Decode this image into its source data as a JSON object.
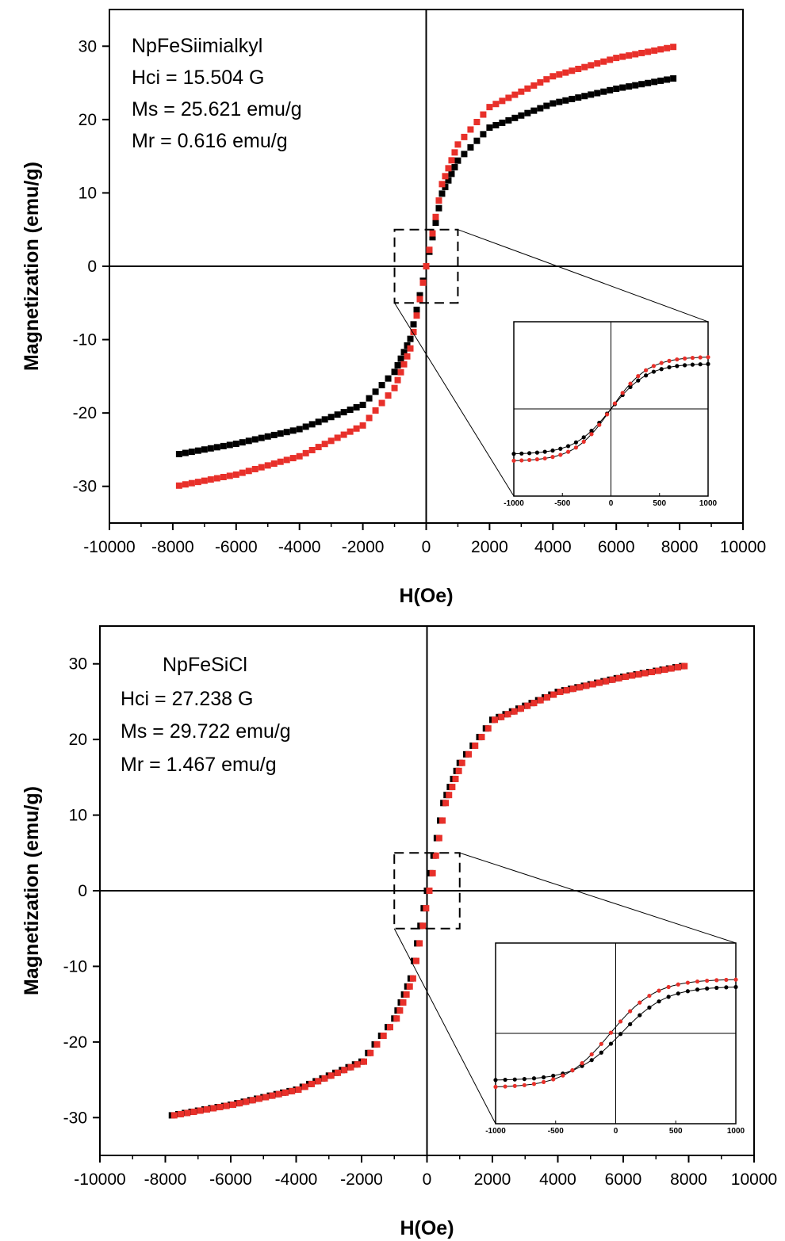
{
  "chart_data": [
    {
      "type": "scatter",
      "title": "",
      "xlabel": "H(Oe)",
      "ylabel": "Magnetization (emu/g)",
      "xlim": [
        -10000,
        10000
      ],
      "ylim": [
        -35,
        35
      ],
      "xticks": [
        "-10000",
        "-8000",
        "-6000",
        "-4000",
        "-2000",
        "0",
        "2000",
        "4000",
        "6000",
        "8000",
        "10000"
      ],
      "yticks": [
        "30",
        "20",
        "10",
        "0",
        "-10",
        "-20",
        "-30"
      ],
      "annotations": [
        "NpFeSiimialkyl",
        "Hci = 15.504 G",
        "Ms = 25.621 emu/g",
        "Mr  = 0.616 emu/g"
      ],
      "series": [
        {
          "color": "#000000",
          "x": [
            -7800,
            -6000,
            -4000,
            -2000,
            -1000,
            -500,
            0,
            500,
            1000,
            2000,
            4000,
            6000,
            7800
          ],
          "y": [
            -25.6,
            -24.2,
            -22.2,
            -18.9,
            -14.4,
            -9.9,
            0,
            9.9,
            14.4,
            18.9,
            22.2,
            24.2,
            25.6
          ]
        },
        {
          "color": "#e8302a",
          "x": [
            -7800,
            -6000,
            -4000,
            -2000,
            -1000,
            -500,
            0,
            500,
            1000,
            2000,
            4000,
            6000,
            7800
          ],
          "y": [
            -29.9,
            -28.4,
            -25.9,
            -21.7,
            -16.6,
            -11.2,
            0,
            11.2,
            16.6,
            21.7,
            25.9,
            28.4,
            29.9
          ]
        }
      ],
      "inset": {
        "xlim": [
          -1000,
          1000
        ],
        "xticks": [
          "-1000",
          "-500",
          "0",
          "500",
          "1000"
        ],
        "zoom_box_x": [
          -1000,
          1000
        ],
        "zoom_box_y": [
          -5,
          5
        ]
      }
    },
    {
      "type": "scatter",
      "title": "",
      "xlabel": "H(Oe)",
      "ylabel": "Magnetization (emu/g)",
      "xlim": [
        -10000,
        10000
      ],
      "ylim": [
        -35,
        35
      ],
      "xticks": [
        "-10000",
        "-8000",
        "-6000",
        "-4000",
        "-2000",
        "0",
        "2000",
        "4000",
        "6000",
        "8000",
        "10000"
      ],
      "yticks": [
        "30",
        "20",
        "10",
        "0",
        "-10",
        "-20",
        "-30"
      ],
      "annotations": [
        "NpFeSiCl",
        "Hci = 27.238 G",
        "Ms = 29.722 emu/g",
        "Mr  = 1.467 emu/g"
      ],
      "series": [
        {
          "color": "#000000",
          "x": [
            -7800,
            -6000,
            -4000,
            -2000,
            -1000,
            -500,
            0,
            500,
            1000,
            2000,
            4000,
            6000,
            7800
          ],
          "y": [
            -29.7,
            -28.3,
            -26.3,
            -22.6,
            -16.9,
            -11.6,
            0,
            11.6,
            16.9,
            22.6,
            26.3,
            28.3,
            29.7
          ]
        },
        {
          "color": "#e8302a",
          "x": [
            -7800,
            -6000,
            -4000,
            -2000,
            -1000,
            -500,
            0,
            500,
            1000,
            2000,
            4000,
            6000,
            7800
          ],
          "y": [
            -29.7,
            -28.3,
            -26.3,
            -22.6,
            -16.9,
            -11.6,
            0,
            11.6,
            16.9,
            22.6,
            26.3,
            28.3,
            29.7
          ]
        }
      ],
      "inset": {
        "xlim": [
          -1000,
          1000
        ],
        "xticks": [
          "-1000",
          "-500",
          "0",
          "500",
          "1000"
        ],
        "zoom_box_x": [
          -1000,
          1000
        ],
        "zoom_box_y": [
          -5,
          5
        ]
      }
    }
  ]
}
